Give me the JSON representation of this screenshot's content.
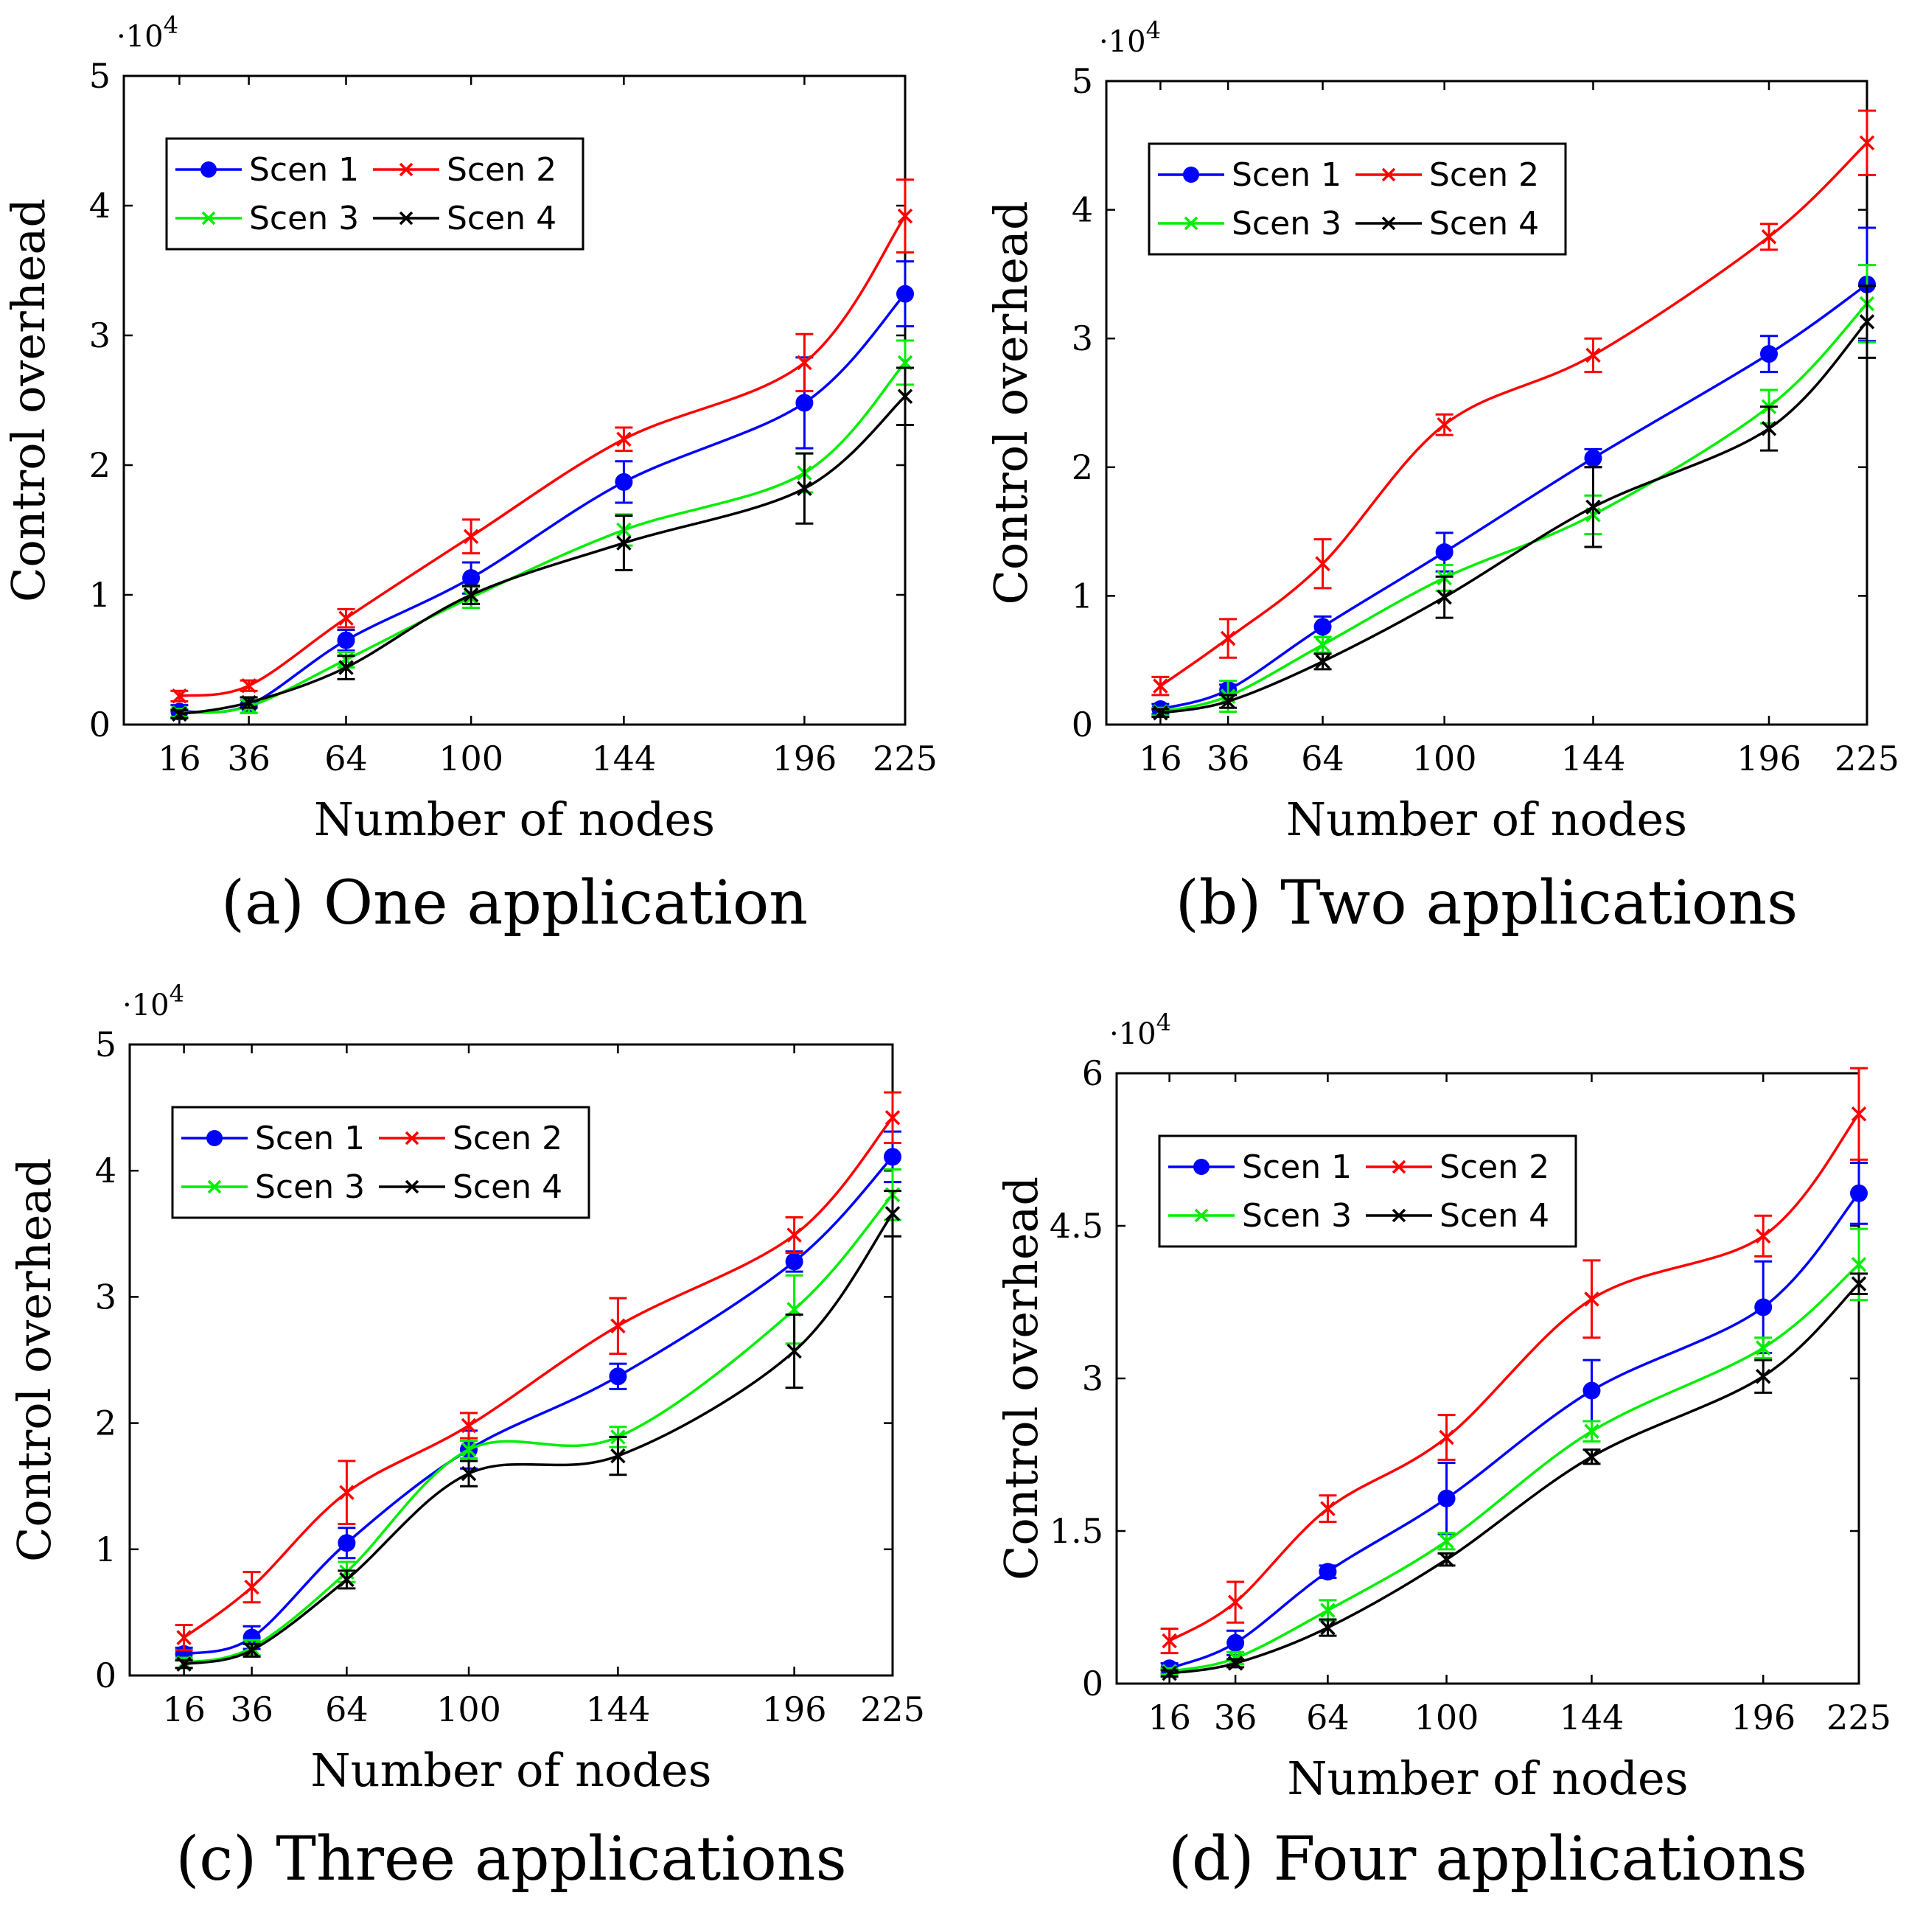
{
  "chart_data": [
    {
      "type": "line",
      "caption": "(a) One application",
      "xlabel": "Number of nodes",
      "ylabel": "Control overhead",
      "y_multiplier_label": "·10",
      "y_multiplier_exp": "4",
      "x": [
        16,
        36,
        64,
        100,
        144,
        196,
        225
      ],
      "xticks": [
        "16",
        "36",
        "64",
        "100",
        "144",
        "196",
        "225"
      ],
      "xlim": [
        0,
        225
      ],
      "ylim": [
        0,
        5
      ],
      "yticks": [
        0,
        1,
        2,
        3,
        4,
        5
      ],
      "yticklabels": [
        "0",
        "1",
        "2",
        "3",
        "4",
        "5"
      ],
      "legend_position": "top-left",
      "series": [
        {
          "name": "Scen 1",
          "color": "#0000ff",
          "marker": "dot",
          "values": [
            0.1,
            0.15,
            0.65,
            1.13,
            1.87,
            2.48,
            3.32
          ],
          "errors": [
            0.05,
            0.06,
            0.08,
            0.12,
            0.16,
            0.35,
            0.25
          ]
        },
        {
          "name": "Scen 2",
          "color": "#ff0000",
          "marker": "x",
          "values": [
            0.22,
            0.3,
            0.82,
            1.45,
            2.2,
            2.79,
            3.92
          ],
          "errors": [
            0.04,
            0.04,
            0.07,
            0.13,
            0.09,
            0.22,
            0.28
          ]
        },
        {
          "name": "Scen 3",
          "color": "#00ee00",
          "marker": "x",
          "values": [
            0.09,
            0.14,
            0.5,
            0.98,
            1.5,
            1.94,
            2.79
          ],
          "errors": [
            0.03,
            0.05,
            0.06,
            0.08,
            0.12,
            0.15,
            0.17
          ]
        },
        {
          "name": "Scen 4",
          "color": "#000000",
          "marker": "x",
          "values": [
            0.08,
            0.17,
            0.44,
            1.0,
            1.4,
            1.82,
            2.53
          ],
          "errors": [
            0.03,
            0.04,
            0.09,
            0.07,
            0.21,
            0.27,
            0.22
          ]
        }
      ]
    },
    {
      "type": "line",
      "caption": "(b) Two applications",
      "xlabel": "Number of nodes",
      "ylabel": "Control overhead",
      "y_multiplier_label": "·10",
      "y_multiplier_exp": "4",
      "x": [
        16,
        36,
        64,
        100,
        144,
        196,
        225
      ],
      "xticks": [
        "16",
        "36",
        "64",
        "100",
        "144",
        "196",
        "225"
      ],
      "xlim": [
        0,
        225
      ],
      "ylim": [
        0,
        5
      ],
      "yticks": [
        0,
        1,
        2,
        3,
        4,
        5
      ],
      "yticklabels": [
        "0",
        "1",
        "2",
        "3",
        "4",
        "5"
      ],
      "legend_position": "top-left",
      "series": [
        {
          "name": "Scen 1",
          "color": "#0000ff",
          "marker": "dot",
          "values": [
            0.12,
            0.27,
            0.76,
            1.34,
            2.07,
            2.88,
            3.42
          ],
          "errors": [
            0.04,
            0.04,
            0.08,
            0.15,
            0.07,
            0.14,
            0.44
          ]
        },
        {
          "name": "Scen 2",
          "color": "#ff0000",
          "marker": "x",
          "values": [
            0.3,
            0.67,
            1.25,
            2.33,
            2.87,
            3.79,
            4.52
          ],
          "errors": [
            0.07,
            0.15,
            0.19,
            0.08,
            0.13,
            0.1,
            0.25
          ]
        },
        {
          "name": "Scen 3",
          "color": "#00ee00",
          "marker": "x",
          "values": [
            0.1,
            0.22,
            0.62,
            1.14,
            1.63,
            2.47,
            3.27
          ],
          "errors": [
            0.03,
            0.12,
            0.06,
            0.1,
            0.15,
            0.13,
            0.3
          ]
        },
        {
          "name": "Scen 4",
          "color": "#000000",
          "marker": "x",
          "values": [
            0.09,
            0.18,
            0.49,
            0.99,
            1.69,
            2.3,
            3.13
          ],
          "errors": [
            0.03,
            0.05,
            0.06,
            0.16,
            0.31,
            0.17,
            0.28
          ]
        }
      ]
    },
    {
      "type": "line",
      "caption": "(c) Three applications",
      "xlabel": "Number of nodes",
      "ylabel": "Control overhead",
      "y_multiplier_label": "·10",
      "y_multiplier_exp": "4",
      "x": [
        16,
        36,
        64,
        100,
        144,
        196,
        225
      ],
      "xticks": [
        "16",
        "36",
        "64",
        "100",
        "144",
        "196",
        "225"
      ],
      "xlim": [
        0,
        225
      ],
      "ylim": [
        0,
        5
      ],
      "yticks": [
        0,
        1,
        2,
        3,
        4,
        5
      ],
      "yticklabels": [
        "0",
        "1",
        "2",
        "3",
        "4",
        "5"
      ],
      "legend_position": "top-left",
      "series": [
        {
          "name": "Scen 1",
          "color": "#0000ff",
          "marker": "dot",
          "values": [
            0.17,
            0.3,
            1.05,
            1.79,
            2.37,
            3.28,
            4.11
          ],
          "errors": [
            0.05,
            0.09,
            0.12,
            0.15,
            0.1,
            0.08,
            0.2
          ]
        },
        {
          "name": "Scen 2",
          "color": "#ff0000",
          "marker": "x",
          "values": [
            0.3,
            0.7,
            1.45,
            1.98,
            2.77,
            3.49,
            4.42
          ],
          "errors": [
            0.1,
            0.12,
            0.25,
            0.1,
            0.22,
            0.14,
            0.2
          ]
        },
        {
          "name": "Scen 3",
          "color": "#00ee00",
          "marker": "x",
          "values": [
            0.1,
            0.22,
            0.82,
            1.79,
            1.89,
            2.9,
            3.81
          ],
          "errors": [
            0.04,
            0.06,
            0.08,
            0.07,
            0.08,
            0.27,
            0.2
          ]
        },
        {
          "name": "Scen 4",
          "color": "#000000",
          "marker": "x",
          "values": [
            0.09,
            0.2,
            0.76,
            1.6,
            1.74,
            2.57,
            3.66
          ],
          "errors": [
            0.03,
            0.05,
            0.07,
            0.1,
            0.15,
            0.29,
            0.18
          ]
        }
      ]
    },
    {
      "type": "line",
      "caption": "(d) Four applications",
      "xlabel": "Number of nodes",
      "ylabel": "Control overhead",
      "y_multiplier_label": "·10",
      "y_multiplier_exp": "4",
      "x": [
        16,
        36,
        64,
        100,
        144,
        196,
        225
      ],
      "xticks": [
        "16",
        "36",
        "64",
        "100",
        "144",
        "196",
        "225"
      ],
      "xlim": [
        0,
        225
      ],
      "ylim": [
        0,
        6
      ],
      "yticks": [
        0,
        1.5,
        3,
        4.5,
        6
      ],
      "yticklabels": [
        "0",
        "1.5",
        "3",
        "4.5",
        "6"
      ],
      "legend_position": "top-left",
      "series": [
        {
          "name": "Scen 1",
          "color": "#0000ff",
          "marker": "dot",
          "values": [
            0.15,
            0.4,
            1.1,
            1.82,
            2.88,
            3.7,
            4.82
          ],
          "errors": [
            0.05,
            0.12,
            0.06,
            0.35,
            0.3,
            0.45,
            0.3
          ]
        },
        {
          "name": "Scen 2",
          "color": "#ff0000",
          "marker": "x",
          "values": [
            0.42,
            0.8,
            1.72,
            2.42,
            3.78,
            4.4,
            5.6
          ],
          "errors": [
            0.12,
            0.2,
            0.13,
            0.22,
            0.38,
            0.2,
            0.45
          ]
        },
        {
          "name": "Scen 3",
          "color": "#00ee00",
          "marker": "x",
          "values": [
            0.12,
            0.25,
            0.72,
            1.4,
            2.48,
            3.3,
            4.12
          ],
          "errors": [
            0.03,
            0.06,
            0.1,
            0.08,
            0.1,
            0.1,
            0.35
          ]
        },
        {
          "name": "Scen 4",
          "color": "#000000",
          "marker": "x",
          "values": [
            0.1,
            0.2,
            0.55,
            1.22,
            2.23,
            3.02,
            3.93
          ],
          "errors": [
            0.03,
            0.04,
            0.08,
            0.06,
            0.07,
            0.16,
            0.1
          ]
        }
      ]
    }
  ]
}
